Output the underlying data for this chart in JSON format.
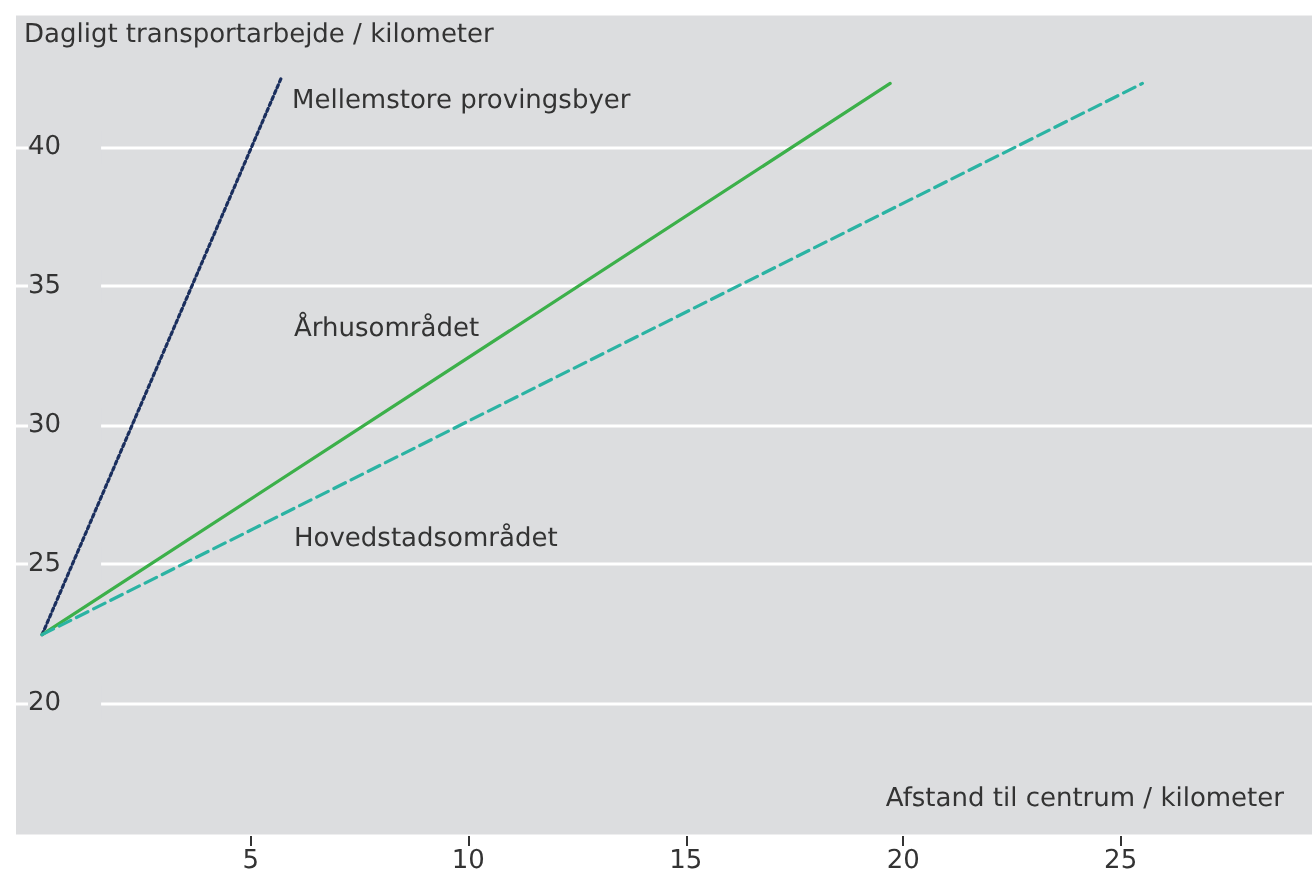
{
  "chart_data": {
    "type": "line",
    "ylabel": "Dagligt transportarbejde / kilometer",
    "xlabel": "Afstand til centrum / kilometer",
    "xlim": [
      -0.4,
      29.4
    ],
    "ylim": [
      15.2,
      44.8
    ],
    "xticks": [
      5,
      10,
      15,
      20,
      25
    ],
    "yticks": [
      20,
      25,
      30,
      35,
      40
    ],
    "grid": "y",
    "legend": false,
    "marker": "none",
    "series": [
      {
        "name": "Mellemstore provingsbyer",
        "color": "#1b2f5e",
        "line_style": "dotted",
        "x": [
          0.2,
          5.7
        ],
        "values": [
          22.45,
          42.5
        ]
      },
      {
        "name": "Århusområdet",
        "color": "#3cb04a",
        "line_style": "solid",
        "x": [
          0.2,
          19.7
        ],
        "values": [
          22.45,
          42.3
        ]
      },
      {
        "name": "Hovedstadsområdet",
        "color": "#2bb3a3",
        "line_style": "dashed",
        "x": [
          0.2,
          25.5
        ],
        "values": [
          22.45,
          42.3
        ]
      }
    ]
  }
}
